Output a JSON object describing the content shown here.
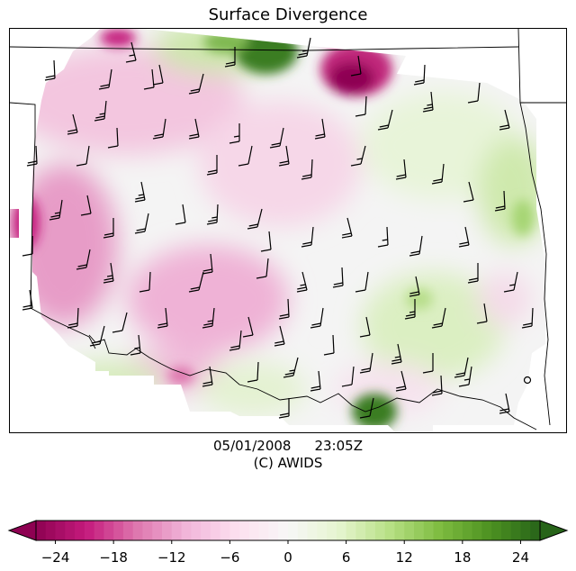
{
  "title": "Surface Divergence",
  "timestamp": {
    "date": "05/01/2008",
    "time": "23:05Z"
  },
  "credit": "(C) AWIDS",
  "colorbar": {
    "ticks": [
      {
        "value": -24,
        "label": "−24"
      },
      {
        "value": -18,
        "label": "−18"
      },
      {
        "value": -12,
        "label": "−12"
      },
      {
        "value": -6,
        "label": "−6"
      },
      {
        "value": 0,
        "label": "0"
      },
      {
        "value": 6,
        "label": "6"
      },
      {
        "value": 12,
        "label": "12"
      },
      {
        "value": 18,
        "label": "18"
      },
      {
        "value": 24,
        "label": "24"
      }
    ],
    "range": [
      -26,
      26
    ],
    "extend": "both",
    "colormap": "PiYG",
    "colors": {
      "min": "#8e0152",
      "mid": "#f7f7f7",
      "max": "#276419"
    }
  },
  "map": {
    "field": "surface divergence",
    "overlay": "wind barbs",
    "boundaries": [
      "state borders",
      "Red River"
    ]
  }
}
